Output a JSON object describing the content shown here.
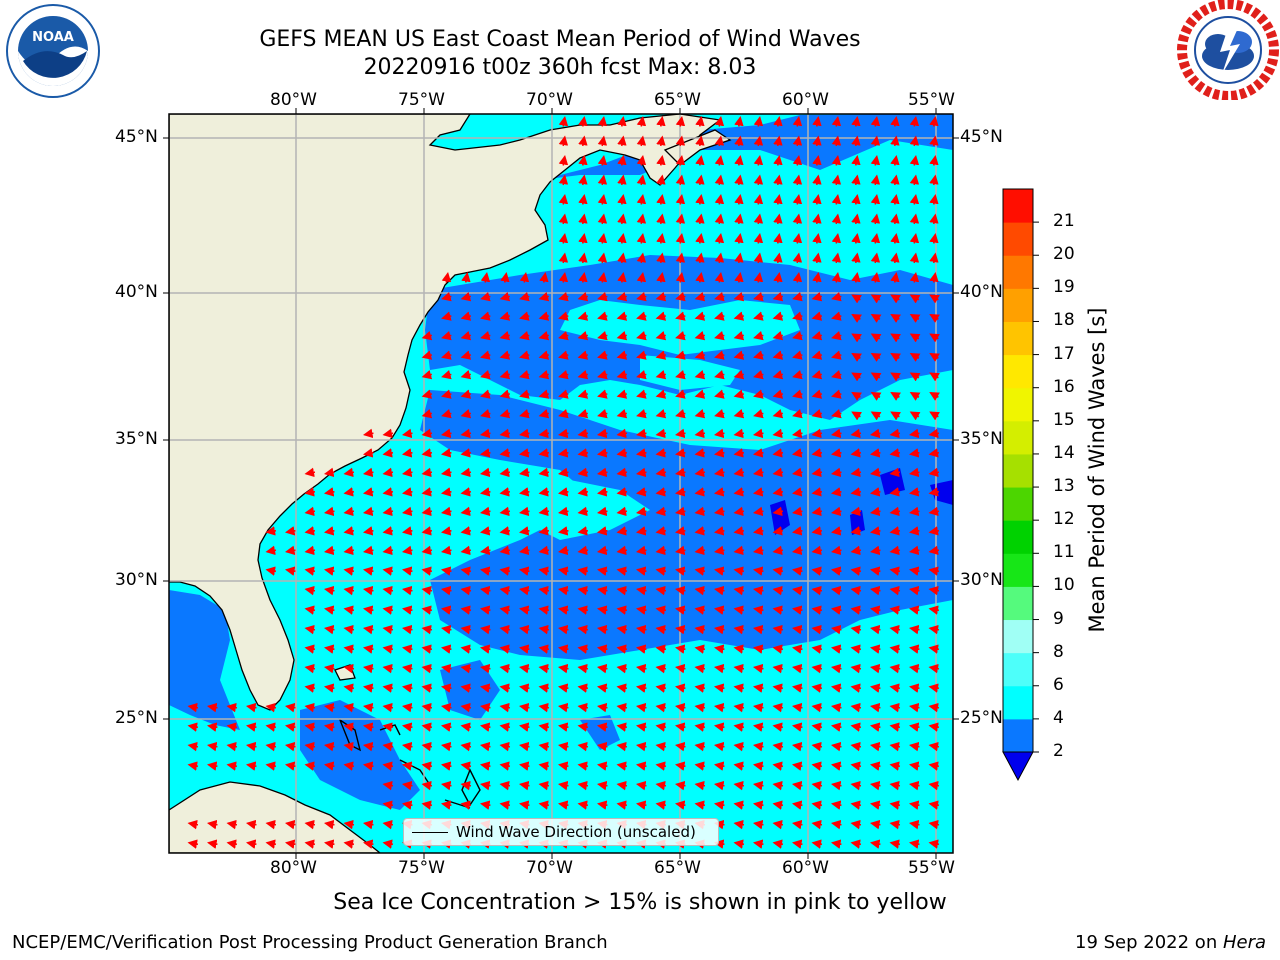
{
  "title": {
    "line1": "GEFS MEAN US East Coast Mean Period of Wind Waves",
    "line2": "20220916 t00z 360h fcst   Max: 8.03"
  },
  "logos": {
    "noaa": {
      "text": "NOAA",
      "ring_text": "NATIONAL OCEANIC AND ATMOSPHERIC ADMINISTRATION",
      "colors": [
        "#1a5aa8",
        "#ffffff"
      ]
    },
    "nws": {
      "ring_text": "NATIONAL WEATHER SERVICE",
      "colors": [
        "#e0201b",
        "#1e4fa0"
      ]
    }
  },
  "map": {
    "lon_labels": [
      "80°W",
      "75°W",
      "70°W",
      "65°W",
      "60°W",
      "55°W"
    ],
    "lat_labels": [
      "45°N",
      "40°N",
      "35°N",
      "30°N",
      "25°N"
    ],
    "land_color": "#efefdb",
    "ocean_colors": {
      "2-4": "#0a78ff",
      "4-6": "#00ffff",
      "below-2": "#0000ee"
    },
    "arrow_color": "#ff0000",
    "legend_label": "Wind Wave Direction (unscaled)"
  },
  "colorbar": {
    "title": "Mean Period of Wind Waves [s]",
    "ticks": [
      "2",
      "4",
      "6",
      "8",
      "9",
      "10",
      "11",
      "12",
      "13",
      "14",
      "15",
      "16",
      "17",
      "18",
      "19",
      "20",
      "21"
    ],
    "colors": [
      "#0a78ff",
      "#00ffff",
      "#4dfffa",
      "#a0fff5",
      "#55fa7d",
      "#17e617",
      "#00d200",
      "#4cd600",
      "#a6e000",
      "#d4ee00",
      "#f0f500",
      "#ffe800",
      "#ffc400",
      "#ffa000",
      "#ff7800",
      "#ff4a00",
      "#ff0e00"
    ],
    "under_color": "#0000ee"
  },
  "note": "Sea Ice Concentration > 15% is shown in pink to yellow",
  "footer": {
    "left": "NCEP/EMC/Verification Post Processing Product Generation Branch",
    "right_date": "19 Sep 2022 on ",
    "right_host": "Hera"
  }
}
